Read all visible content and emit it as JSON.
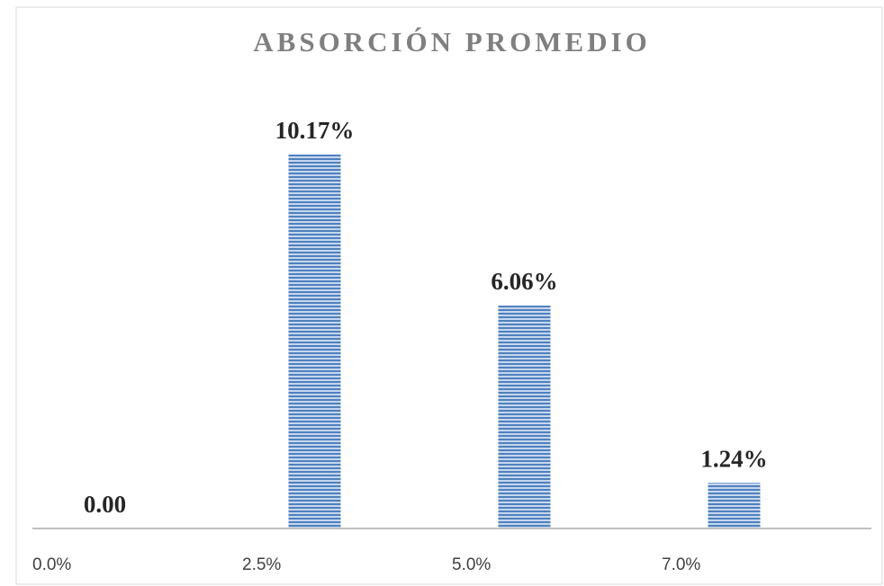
{
  "chart_data": {
    "type": "bar",
    "title": "ABSORCIÓN PROMEDIO",
    "categories": [
      "0.0%",
      "2.5%",
      "5.0%",
      "7.0%"
    ],
    "values": [
      0,
      10.17,
      6.06,
      1.24
    ],
    "value_labels": [
      "0.00",
      "10.17%",
      "6.06%",
      "1.24%"
    ],
    "color": "#4f81bd",
    "ylim": [
      0,
      12
    ]
  }
}
